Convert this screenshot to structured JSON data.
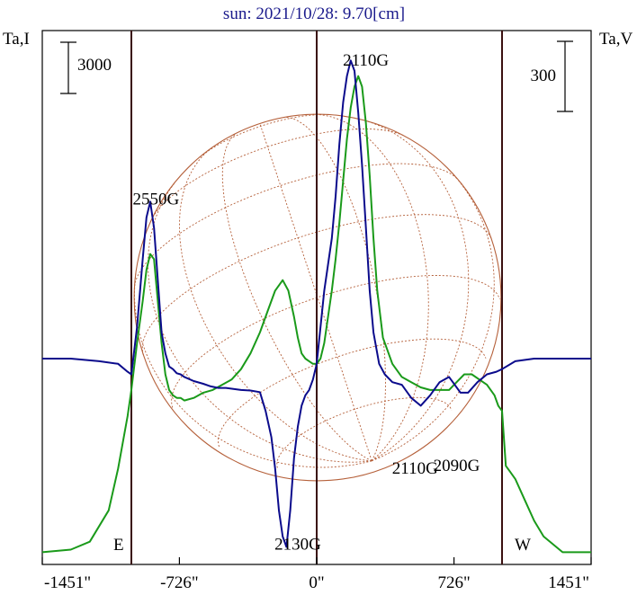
{
  "chart_data": {
    "type": "line",
    "title": "sun: 2021/10/28: 9.70[cm]",
    "left_axis_label": "Ta,I",
    "right_axis_label": "Ta,V",
    "xlim": [
      -1451,
      1451
    ],
    "xticks": [
      -1451,
      -726,
      0,
      726,
      1451
    ],
    "xtick_labels": [
      "-1451\"",
      "-726\"",
      "0\"",
      "726\"",
      "1451\""
    ],
    "scale_bars": [
      {
        "label": "3000",
        "axis": "left"
      },
      {
        "label": "300",
        "axis": "right"
      }
    ],
    "limb_markers": [
      {
        "x": -980,
        "label": "E"
      },
      {
        "x": 0,
        "label": ""
      },
      {
        "x": 980,
        "label": "W"
      }
    ],
    "annotations": [
      {
        "text": "2550G",
        "x": -850,
        "y": 0.685
      },
      {
        "text": "2110G",
        "x": 260,
        "y": 0.95
      },
      {
        "text": "2130G",
        "x": -100,
        "y": 0.025
      },
      {
        "text": "2110G",
        "x": 520,
        "y": 0.17
      },
      {
        "text": "2090G",
        "x": 740,
        "y": 0.175
      }
    ],
    "disk": {
      "radius": 970,
      "grid": true
    },
    "series": [
      {
        "color": "#0b0b8c",
        "x": [
          -1451,
          -1300,
          -1150,
          -1050,
          -1000,
          -980,
          -950,
          -920,
          -900,
          -880,
          -860,
          -840,
          -820,
          -800,
          -780,
          -760,
          -740,
          -720,
          -700,
          -650,
          -600,
          -560,
          -520,
          -480,
          -440,
          -400,
          -350,
          -300,
          -270,
          -240,
          -220,
          -200,
          -180,
          -160,
          -140,
          -120,
          -100,
          -80,
          -60,
          -40,
          -20,
          0,
          20,
          40,
          60,
          80,
          100,
          120,
          140,
          160,
          180,
          200,
          220,
          240,
          260,
          280,
          300,
          330,
          360,
          400,
          450,
          500,
          550,
          600,
          650,
          700,
          730,
          760,
          800,
          850,
          900,
          950,
          980,
          1050,
          1150,
          1300,
          1451
        ],
        "y": [
          0.39,
          0.39,
          0.385,
          0.38,
          0.365,
          0.36,
          0.45,
          0.58,
          0.66,
          0.69,
          0.64,
          0.54,
          0.44,
          0.4,
          0.375,
          0.37,
          0.362,
          0.36,
          0.355,
          0.347,
          0.342,
          0.337,
          0.334,
          0.334,
          0.332,
          0.33,
          0.329,
          0.326,
          0.29,
          0.24,
          0.18,
          0.1,
          0.05,
          0.03,
          0.1,
          0.2,
          0.26,
          0.3,
          0.32,
          0.33,
          0.35,
          0.38,
          0.45,
          0.52,
          0.57,
          0.62,
          0.7,
          0.8,
          0.88,
          0.93,
          0.96,
          0.94,
          0.86,
          0.76,
          0.64,
          0.52,
          0.44,
          0.38,
          0.36,
          0.345,
          0.34,
          0.315,
          0.3,
          0.32,
          0.345,
          0.355,
          0.34,
          0.325,
          0.325,
          0.345,
          0.36,
          0.365,
          0.37,
          0.385,
          0.39,
          0.39,
          0.39
        ]
      },
      {
        "color": "#1a9a1a",
        "x": [
          -1451,
          -1300,
          -1200,
          -1100,
          -1050,
          -1000,
          -980,
          -950,
          -920,
          -900,
          -880,
          -860,
          -840,
          -820,
          -800,
          -780,
          -760,
          -740,
          -720,
          -700,
          -650,
          -600,
          -550,
          -500,
          -450,
          -400,
          -350,
          -300,
          -260,
          -220,
          -180,
          -150,
          -120,
          -100,
          -80,
          -60,
          -40,
          -20,
          0,
          20,
          40,
          60,
          80,
          100,
          120,
          140,
          160,
          180,
          200,
          220,
          240,
          260,
          280,
          300,
          320,
          350,
          400,
          450,
          500,
          550,
          600,
          650,
          700,
          740,
          780,
          820,
          860,
          900,
          940,
          960,
          980,
          1000,
          1020,
          1050,
          1100,
          1150,
          1200,
          1300,
          1451
        ],
        "y": [
          0.02,
          0.025,
          0.04,
          0.1,
          0.18,
          0.28,
          0.33,
          0.42,
          0.5,
          0.56,
          0.59,
          0.58,
          0.5,
          0.42,
          0.36,
          0.33,
          0.32,
          0.315,
          0.315,
          0.31,
          0.315,
          0.325,
          0.33,
          0.34,
          0.35,
          0.37,
          0.4,
          0.44,
          0.48,
          0.52,
          0.54,
          0.52,
          0.47,
          0.43,
          0.4,
          0.39,
          0.385,
          0.38,
          0.38,
          0.39,
          0.42,
          0.47,
          0.52,
          0.58,
          0.65,
          0.73,
          0.81,
          0.87,
          0.91,
          0.93,
          0.91,
          0.84,
          0.74,
          0.62,
          0.52,
          0.43,
          0.38,
          0.355,
          0.345,
          0.335,
          0.33,
          0.33,
          0.33,
          0.345,
          0.36,
          0.36,
          0.35,
          0.34,
          0.32,
          0.3,
          0.29,
          0.185,
          0.175,
          0.16,
          0.12,
          0.08,
          0.05,
          0.02,
          0.02
        ]
      }
    ]
  }
}
